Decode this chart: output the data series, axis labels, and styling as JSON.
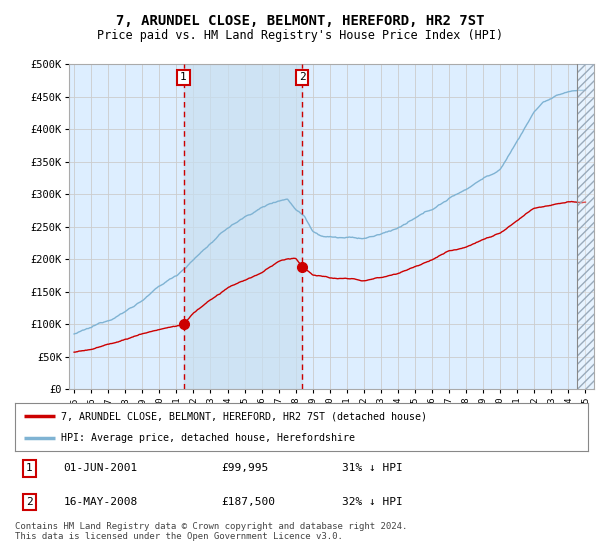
{
  "title": "7, ARUNDEL CLOSE, BELMONT, HEREFORD, HR2 7ST",
  "subtitle": "Price paid vs. HM Land Registry's House Price Index (HPI)",
  "legend_line1": "7, ARUNDEL CLOSE, BELMONT, HEREFORD, HR2 7ST (detached house)",
  "legend_line2": "HPI: Average price, detached house, Herefordshire",
  "footer": "Contains HM Land Registry data © Crown copyright and database right 2024.\nThis data is licensed under the Open Government Licence v3.0.",
  "transaction1_date": "01-JUN-2001",
  "transaction1_price": "£99,995",
  "transaction1_hpi": "31% ↓ HPI",
  "transaction2_date": "16-MAY-2008",
  "transaction2_price": "£187,500",
  "transaction2_hpi": "32% ↓ HPI",
  "red_line_color": "#cc0000",
  "blue_line_color": "#7fb3d3",
  "vline_color": "#cc0000",
  "grid_color": "#cccccc",
  "background_plot": "#ddeeff",
  "background_fig": "#ffffff",
  "ylim": [
    0,
    500000
  ],
  "yticks": [
    0,
    50000,
    100000,
    150000,
    200000,
    250000,
    300000,
    350000,
    400000,
    450000,
    500000
  ],
  "ytick_labels": [
    "£0",
    "£50K",
    "£100K",
    "£150K",
    "£200K",
    "£250K",
    "£300K",
    "£350K",
    "£400K",
    "£450K",
    "£500K"
  ],
  "vline1_x": 2001.42,
  "vline2_x": 2008.37,
  "marker1_x": 2001.42,
  "marker1_y": 99995,
  "marker2_x": 2008.37,
  "marker2_y": 187500,
  "shade_between_vlines": true,
  "hatch_start": 2024.5,
  "hatch_end": 2025.5,
  "xmin": 1994.7,
  "xmax": 2025.5
}
